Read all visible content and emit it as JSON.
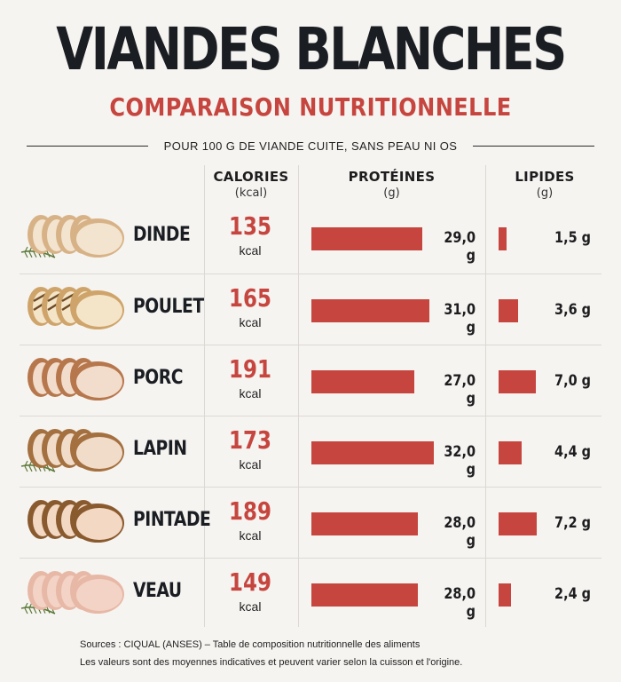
{
  "title": "VIANDES BLANCHES",
  "subtitle": "COMPARAISON NUTRITIONNELLE",
  "note": "POUR 100 G DE VIANDE CUITE, SANS PEAU NI OS",
  "headers": {
    "calories": "CALORIES",
    "calories_unit": "(kcal)",
    "proteins": "PROTÉINES",
    "proteins_unit": "(g)",
    "lipids": "LIPIDES",
    "lipids_unit": "(g)"
  },
  "colors": {
    "accent": "#c6463f",
    "title": "#1a1d22",
    "background": "#f6f4f1"
  },
  "chart_data": {
    "type": "table",
    "columns": [
      "CALORIES (kcal)",
      "PROTÉINES (g)",
      "LIPIDES (g)"
    ],
    "rows": [
      {
        "name": "DINDE",
        "calories": "135",
        "cal_unit": "kcal",
        "proteins": 29.0,
        "proteins_label": "29,0 g",
        "lipids": 1.5,
        "lipids_label": "1,5 g",
        "image": "sliced-turkey-with-rosemary"
      },
      {
        "name": "POULET",
        "calories": "165",
        "cal_unit": "kcal",
        "proteins": 31.0,
        "proteins_label": "31,0 g",
        "lipids": 3.6,
        "lipids_label": "3,6 g",
        "image": "grilled-chicken-slices"
      },
      {
        "name": "PORC",
        "calories": "191",
        "cal_unit": "kcal",
        "proteins": 27.0,
        "proteins_label": "27,0 g",
        "lipids": 7.0,
        "lipids_label": "7,0 g",
        "image": "sliced-pork-roast"
      },
      {
        "name": "LAPIN",
        "calories": "173",
        "cal_unit": "kcal",
        "proteins": 32.0,
        "proteins_label": "32,0 g",
        "lipids": 4.4,
        "lipids_label": "4,4 g",
        "image": "sliced-rabbit-with-thyme"
      },
      {
        "name": "PINTADE",
        "calories": "189",
        "cal_unit": "kcal",
        "proteins": 28.0,
        "proteins_label": "28,0 g",
        "lipids": 7.2,
        "lipids_label": "7,2 g",
        "image": "sliced-guinea-fowl"
      },
      {
        "name": "VEAU",
        "calories": "149",
        "cal_unit": "kcal",
        "proteins": 28.0,
        "proteins_label": "28,0 g",
        "lipids": 2.4,
        "lipids_label": "2,4 g",
        "image": "sliced-veal-with-rosemary"
      }
    ]
  },
  "sources": "Sources : CIQUAL (ANSES) – Table de composition nutritionnelle des aliments",
  "disclaimer": "Les valeurs sont des moyennes indicatives et peuvent varier selon la cuisson et l'origine."
}
